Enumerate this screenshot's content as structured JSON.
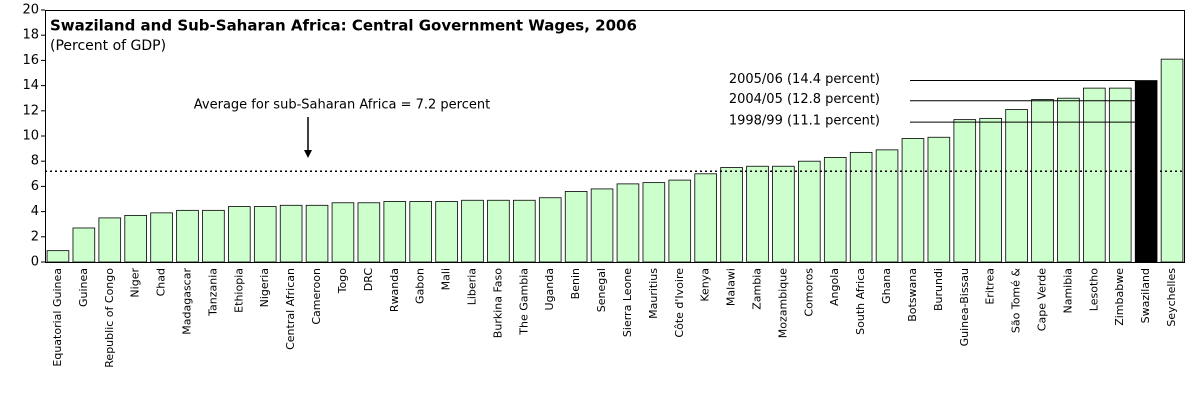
{
  "chart_data": {
    "type": "bar",
    "title": "Swaziland and Sub-Saharan Africa: Central Government Wages, 2006",
    "subtitle": "(Percent of GDP)",
    "categories": [
      "Equatorial Guinea",
      "Guinea",
      "Republic of Congo",
      "Niger",
      "Chad",
      "Madagascar",
      "Tanzania",
      "Ethiopia",
      "Nigeria",
      "Central African",
      "Cameroon",
      "Togo",
      "DRC",
      "Rwanda",
      "Gabon",
      "Mali",
      "Liberia",
      "Burkina Faso",
      "The Gambia",
      "Uganda",
      "Benin",
      "Senegal",
      "Sierra Leone",
      "Mauritius",
      "Côte d'Ivoire",
      "Kenya",
      "Malawi",
      "Zambia",
      "Mozambique",
      "Comoros",
      "Angola",
      "South Africa",
      "Ghana",
      "Botswana",
      "Burundi",
      "Guinea-Bissau",
      "Eritrea",
      "São Tomé &",
      "Cape Verde",
      "Namibia",
      "Lesotho",
      "Zimbabwe",
      "Swaziland",
      "Seychelles"
    ],
    "values": [
      0.9,
      2.7,
      3.5,
      3.7,
      3.9,
      4.1,
      4.1,
      4.4,
      4.4,
      4.5,
      4.5,
      4.7,
      4.7,
      4.8,
      4.8,
      4.8,
      4.9,
      4.9,
      4.9,
      5.1,
      5.6,
      5.8,
      6.2,
      6.3,
      6.5,
      7.0,
      7.5,
      7.6,
      7.6,
      8.0,
      8.3,
      8.7,
      8.9,
      9.8,
      9.9,
      11.3,
      11.4,
      12.1,
      12.9,
      13.0,
      13.8,
      13.8,
      14.4,
      16.1
    ],
    "color": "#ccffcc",
    "highlight": {
      "category": "Swaziland",
      "color": "#000000"
    },
    "ylim": [
      0,
      20
    ],
    "yticks": [
      0,
      2,
      4,
      6,
      8,
      10,
      12,
      14,
      16,
      18,
      20
    ],
    "average_line": {
      "value": 7.2,
      "label": "Average for sub-Saharan Africa = 7.2 percent"
    },
    "reference_lines": [
      {
        "label": "2005/06 (14.4 percent)",
        "value": 14.4
      },
      {
        "label": "2004/05 (12.8 percent)",
        "value": 12.8
      },
      {
        "label": "1998/99 (11.1 percent)",
        "value": 11.1
      }
    ]
  }
}
